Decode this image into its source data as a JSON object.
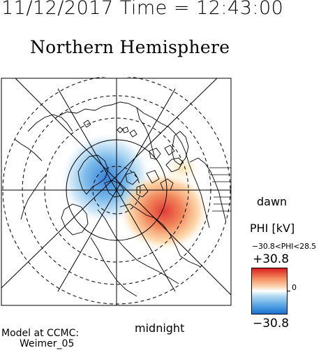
{
  "header": {
    "datetime": "11/12/2017 Time = 12:43:00",
    "title": "Northern Hemisphere"
  },
  "map": {
    "projection": "polar",
    "hemisphere": "northern",
    "field_name": "PHI",
    "positive_cell": "dusk-dawn red potential cell on dawn/midnight side",
    "negative_cell": "blue potential cell centered near pole toward noon",
    "orientation_labels": {
      "dawn": "dawn",
      "midnight": "midnight"
    }
  },
  "legend": {
    "label": "PHI [kV]",
    "range_text": "−30.8<PHI<28.5",
    "max_label": "+30.8",
    "min_label": "−30.8",
    "zero_label": "0",
    "colors": {
      "high": "#d7191c",
      "mid_high": "#fdae61",
      "center": "#ffffff",
      "mid_low": "#abd9e9",
      "low": "#2c7bb6"
    }
  },
  "footer": {
    "model_label": "Model at CCMC:",
    "model_name": "Weimer_05"
  }
}
